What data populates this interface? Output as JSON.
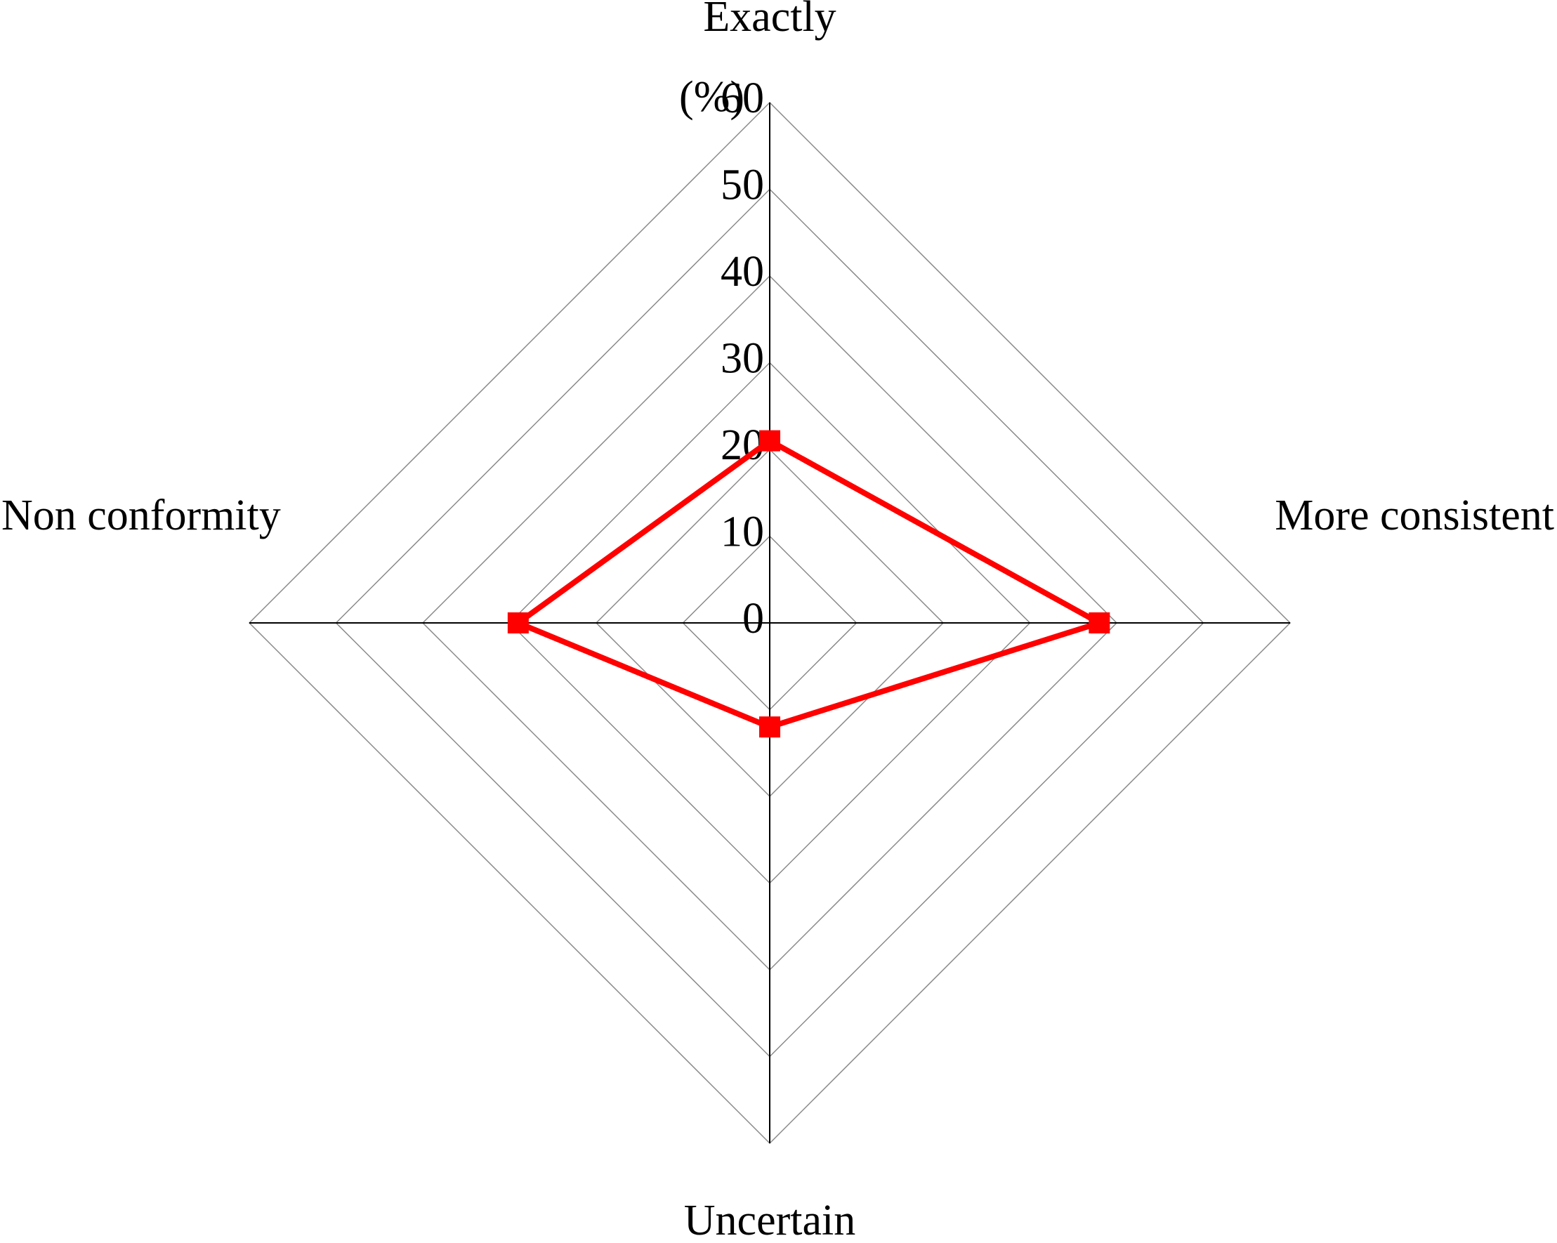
{
  "chart_data": {
    "type": "radar",
    "unit_label": "(%)",
    "categories": [
      "Exactly",
      "More consistent",
      "Uncertain",
      "Non conformity"
    ],
    "values": [
      21,
      38,
      12,
      29
    ],
    "color": "#ff0000",
    "rlim": [
      0,
      60
    ],
    "rticks": [
      0,
      10,
      20,
      30,
      40,
      50,
      60
    ],
    "grid": true
  }
}
